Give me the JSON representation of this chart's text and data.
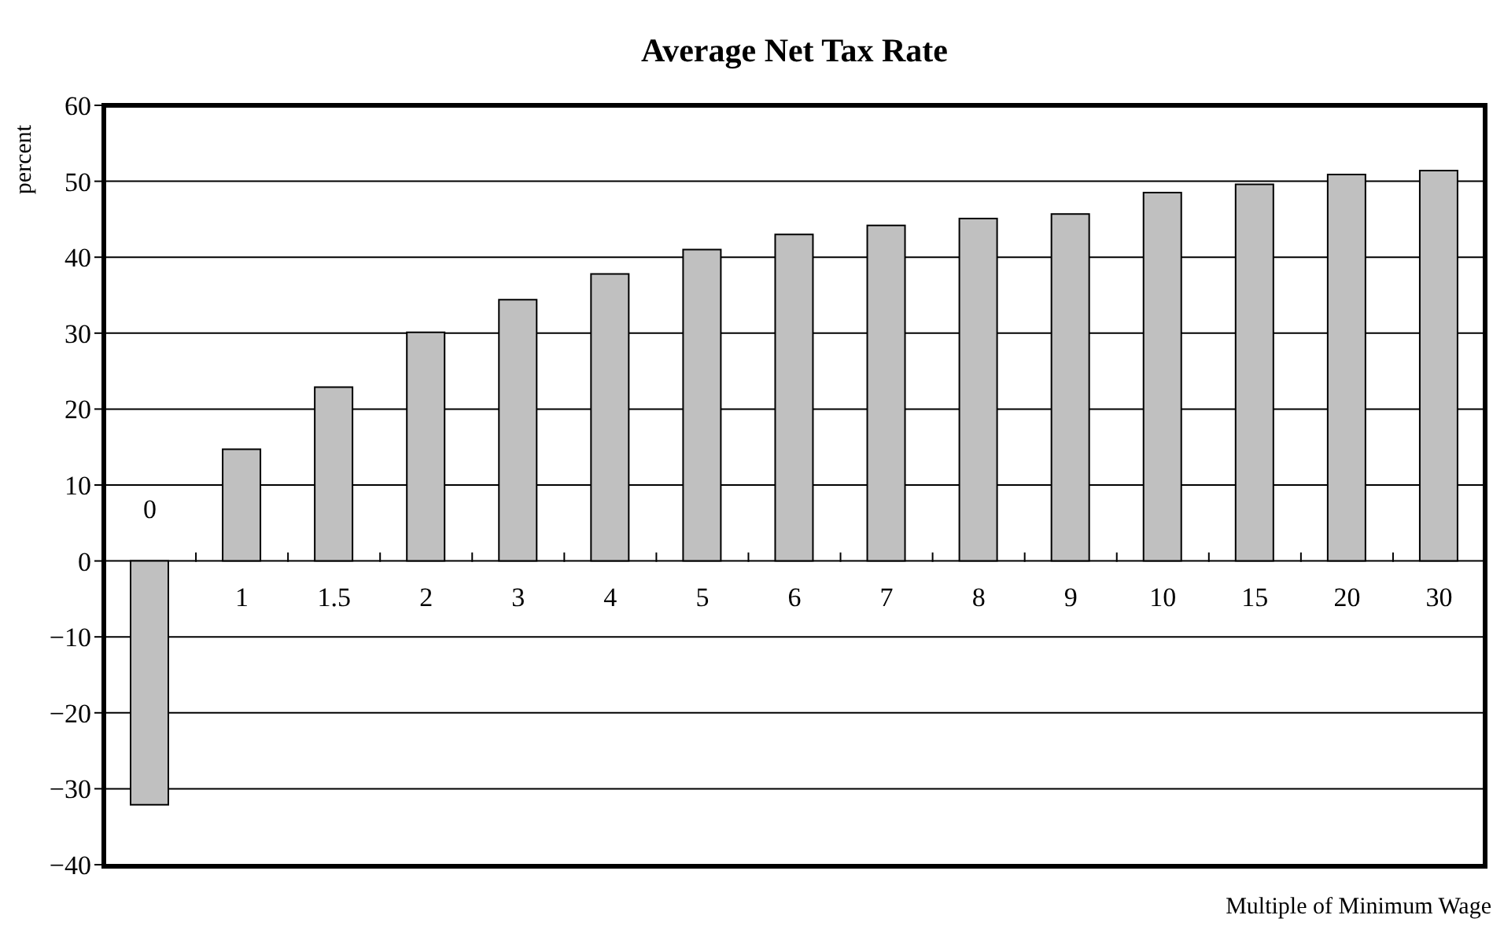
{
  "chart_data": {
    "type": "bar",
    "title": "Average Net Tax Rate",
    "ylabel": "percent",
    "xlabel": "Multiple of Minimum Wage",
    "categories": [
      "0",
      "1",
      "1.5",
      "2",
      "3",
      "4",
      "5",
      "6",
      "7",
      "8",
      "9",
      "10",
      "15",
      "20",
      "30"
    ],
    "values": [
      -32.1,
      14.7,
      22.9,
      30.1,
      34.4,
      37.8,
      41.0,
      43.0,
      44.2,
      45.1,
      45.7,
      48.5,
      49.6,
      50.9,
      51.4
    ],
    "color": "#c0c0c0",
    "ylim": [
      -40,
      60
    ],
    "yticks": [
      -40,
      -30,
      -20,
      -10,
      0,
      10,
      20,
      30,
      40,
      50,
      60
    ],
    "grid": "y"
  }
}
